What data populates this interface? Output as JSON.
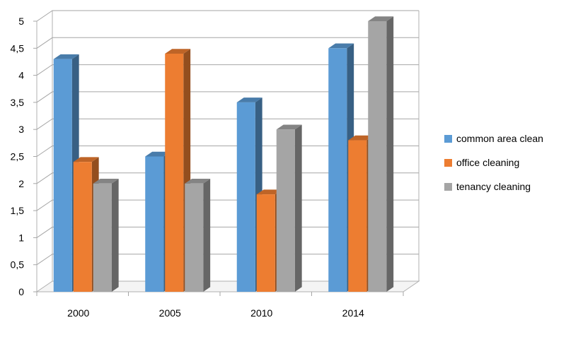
{
  "chart_data": {
    "type": "bar",
    "style": "3d-clustered-column",
    "categories": [
      "2000",
      "2005",
      "2010",
      "2014"
    ],
    "series": [
      {
        "name": "common area clean",
        "values": [
          4.3,
          2.5,
          3.5,
          4.5
        ],
        "color": "#5B9BD5"
      },
      {
        "name": "office cleaning",
        "values": [
          2.4,
          4.4,
          1.8,
          2.8
        ],
        "color": "#ED7D31"
      },
      {
        "name": "tenancy cleaning",
        "values": [
          2.0,
          2.0,
          3.0,
          5.0
        ],
        "color": "#A5A5A5"
      }
    ],
    "yticks": [
      "0",
      "0,5",
      "1",
      "1,5",
      "2",
      "2,5",
      "3",
      "3,5",
      "4",
      "4,5",
      "5"
    ],
    "ylim": [
      0,
      5
    ],
    "grid": true,
    "legend_position": "right"
  }
}
